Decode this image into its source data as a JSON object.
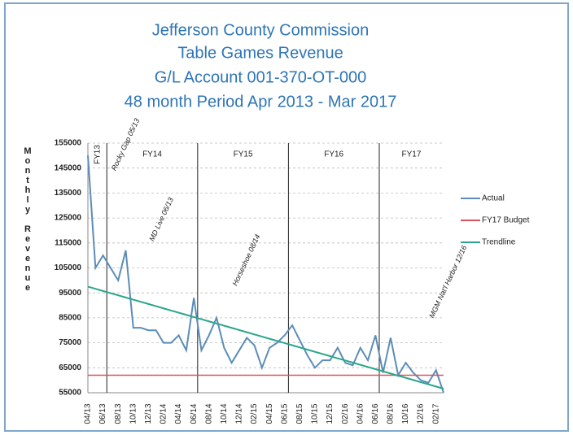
{
  "chart_data": {
    "type": "line",
    "title": [
      "Jefferson County Commission",
      "Table Games Revenue",
      "G/L Account 001-370-OT-000",
      "48 month Period Apr 2013 - Mar 2017"
    ],
    "y_axis_label": "Monthly Revenue",
    "categories": [
      "04/13",
      null,
      "06/13",
      null,
      "08/13",
      null,
      "10/13",
      null,
      "12/13",
      null,
      "02/14",
      null,
      "04/14",
      null,
      "06/14",
      null,
      "08/14",
      null,
      "10/14",
      null,
      "12/14",
      null,
      "02/15",
      null,
      "04/15",
      null,
      "06/15",
      null,
      "08/15",
      null,
      "10/15",
      null,
      "12/15",
      null,
      "02/16",
      null,
      "04/16",
      null,
      "06/16",
      null,
      "08/16",
      null,
      "10/16",
      null,
      "12/16",
      null,
      "02/17",
      null
    ],
    "series": [
      {
        "name": "Actual",
        "color": "#5b8db8",
        "values": [
          150000,
          105000,
          110000,
          105000,
          100000,
          112000,
          81000,
          81000,
          80000,
          80000,
          75000,
          75000,
          78000,
          72000,
          93000,
          72000,
          78000,
          85000,
          73000,
          67000,
          72000,
          77000,
          74000,
          65000,
          73000,
          75000,
          78000,
          82000,
          76000,
          70000,
          65000,
          68000,
          68000,
          73000,
          67000,
          66000,
          73000,
          68000,
          78000,
          63000,
          77000,
          62000,
          67000,
          63000,
          60000,
          59000,
          64000,
          55000
        ]
      },
      {
        "name": "FY17 Budget",
        "color": "#d9535f",
        "values": [
          62000,
          62000,
          62000,
          62000,
          62000,
          62000,
          62000,
          62000,
          62000,
          62000,
          62000,
          62000,
          62000,
          62000,
          62000,
          62000,
          62000,
          62000,
          62000,
          62000,
          62000,
          62000,
          62000,
          62000,
          62000,
          62000,
          62000,
          62000,
          62000,
          62000,
          62000,
          62000,
          62000,
          62000,
          62000,
          62000,
          62000,
          62000,
          62000,
          62000,
          62000,
          62000,
          62000,
          62000,
          62000,
          62000,
          62000,
          62000
        ]
      },
      {
        "name": "Trendline",
        "color": "#2aa58a",
        "values": [
          97500,
          96630,
          95760,
          94890,
          94020,
          93150,
          92280,
          91410,
          90540,
          89670,
          88800,
          87930,
          87060,
          86190,
          85320,
          84450,
          83580,
          82710,
          81840,
          80970,
          80100,
          79230,
          78360,
          77490,
          76620,
          75750,
          74880,
          74010,
          73140,
          72270,
          71400,
          70530,
          69660,
          68790,
          67920,
          67050,
          66180,
          65310,
          64440,
          63570,
          62700,
          61830,
          60960,
          60090,
          59220,
          58350,
          57480,
          56610
        ]
      }
    ],
    "fiscal_years": [
      "FY13",
      "FY14",
      "FY15",
      "FY16",
      "FY17"
    ],
    "annotations": [
      "Rocky Gap 05/13",
      "MD Live 06/13",
      "Horseshoe 08/14",
      "MGM Nat'l Harbor 12/16"
    ],
    "ylim": [
      55000,
      155000
    ],
    "yticks": [
      55000,
      65000,
      75000,
      85000,
      95000,
      105000,
      115000,
      125000,
      135000,
      145000,
      155000
    ],
    "grid": true
  }
}
